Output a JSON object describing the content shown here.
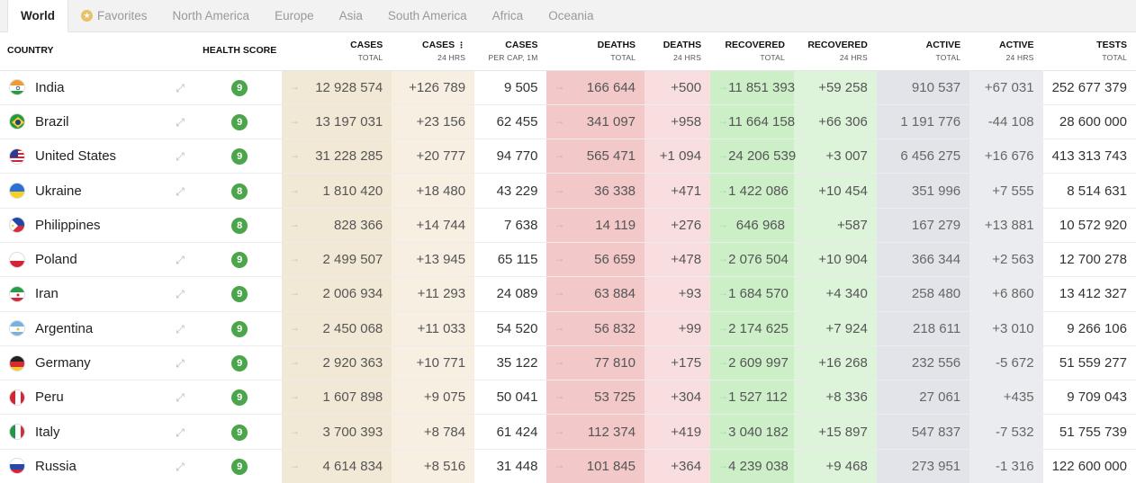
{
  "tabs": [
    {
      "label": "World",
      "active": true
    },
    {
      "label": "Favorites",
      "icon": "star-icon"
    },
    {
      "label": "North America"
    },
    {
      "label": "Europe"
    },
    {
      "label": "Asia"
    },
    {
      "label": "South America"
    },
    {
      "label": "Africa"
    },
    {
      "label": "Oceania"
    }
  ],
  "headers": {
    "country": "COUNTRY",
    "health": "HEALTH SCORE",
    "cases": {
      "title": "CASES",
      "sub": "TOTAL"
    },
    "cases24": {
      "title": "CASES",
      "sub": "24 HRS"
    },
    "casespc": {
      "title": "CASES",
      "sub": "PER CAP, 1M"
    },
    "deaths": {
      "title": "DEATHS",
      "sub": "TOTAL"
    },
    "deaths24": {
      "title": "DEATHS",
      "sub": "24 HRS"
    },
    "rec": {
      "title": "RECOVERED",
      "sub": "TOTAL"
    },
    "rec24": {
      "title": "RECOVERED",
      "sub": "24 HRS"
    },
    "act": {
      "title": "ACTIVE",
      "sub": "TOTAL"
    },
    "act24": {
      "title": "ACTIVE",
      "sub": "24 HRS"
    },
    "tests": {
      "title": "TESTS",
      "sub": "TOTAL"
    }
  },
  "colors": {
    "cases": "#f2e8d6",
    "deaths": "#f3c8c8",
    "recovered": "#ccefc8",
    "active": "#e2e4ea",
    "health_badge": "#4ba54a"
  },
  "rows": [
    {
      "name": "India",
      "flag": "india-flag-icon",
      "health": "9",
      "cases": "12 928 574",
      "cases24": "+126 789",
      "casespc": "9 505",
      "deaths": "166 644",
      "deaths24": "+500",
      "rec": "11 851 393",
      "rec24": "+59 258",
      "act": "910 537",
      "act24": "+67 031",
      "tests": "252 677 379"
    },
    {
      "name": "Brazil",
      "flag": "brazil-flag-icon",
      "health": "9",
      "cases": "13 197 031",
      "cases24": "+23 156",
      "casespc": "62 455",
      "deaths": "341 097",
      "deaths24": "+958",
      "rec": "11 664 158",
      "rec24": "+66 306",
      "act": "1 191 776",
      "act24": "-44 108",
      "tests": "28 600 000"
    },
    {
      "name": "United States",
      "flag": "usa-flag-icon",
      "health": "9",
      "cases": "31 228 285",
      "cases24": "+20 777",
      "casespc": "94 770",
      "deaths": "565 471",
      "deaths24": "+1 094",
      "rec": "24 206 539",
      "rec24": "+3 007",
      "act": "6 456 275",
      "act24": "+16 676",
      "tests": "413 313 743"
    },
    {
      "name": "Ukraine",
      "flag": "ukraine-flag-icon",
      "health": "8",
      "cases": "1 810 420",
      "cases24": "+18 480",
      "casespc": "43 229",
      "deaths": "36 338",
      "deaths24": "+471",
      "rec": "1 422 086",
      "rec24": "+10 454",
      "act": "351 996",
      "act24": "+7 555",
      "tests": "8 514 631"
    },
    {
      "name": "Philippines",
      "flag": "philippines-flag-icon",
      "health": "8",
      "cases": "828 366",
      "cases24": "+14 744",
      "casespc": "7 638",
      "deaths": "14 119",
      "deaths24": "+276",
      "rec": "646 968",
      "rec24": "+587",
      "act": "167 279",
      "act24": "+13 881",
      "tests": "10 572 920"
    },
    {
      "name": "Poland",
      "flag": "poland-flag-icon",
      "health": "9",
      "cases": "2 499 507",
      "cases24": "+13 945",
      "casespc": "65 115",
      "deaths": "56 659",
      "deaths24": "+478",
      "rec": "2 076 504",
      "rec24": "+10 904",
      "act": "366 344",
      "act24": "+2 563",
      "tests": "12 700 278"
    },
    {
      "name": "Iran",
      "flag": "iran-flag-icon",
      "health": "9",
      "cases": "2 006 934",
      "cases24": "+11 293",
      "casespc": "24 089",
      "deaths": "63 884",
      "deaths24": "+93",
      "rec": "1 684 570",
      "rec24": "+4 340",
      "act": "258 480",
      "act24": "+6 860",
      "tests": "13 412 327"
    },
    {
      "name": "Argentina",
      "flag": "argentina-flag-icon",
      "health": "9",
      "cases": "2 450 068",
      "cases24": "+11 033",
      "casespc": "54 520",
      "deaths": "56 832",
      "deaths24": "+99",
      "rec": "2 174 625",
      "rec24": "+7 924",
      "act": "218 611",
      "act24": "+3 010",
      "tests": "9 266 106"
    },
    {
      "name": "Germany",
      "flag": "germany-flag-icon",
      "health": "9",
      "cases": "2 920 363",
      "cases24": "+10 771",
      "casespc": "35 122",
      "deaths": "77 810",
      "deaths24": "+175",
      "rec": "2 609 997",
      "rec24": "+16 268",
      "act": "232 556",
      "act24": "-5 672",
      "tests": "51 559 277"
    },
    {
      "name": "Peru",
      "flag": "peru-flag-icon",
      "health": "9",
      "cases": "1 607 898",
      "cases24": "+9 075",
      "casespc": "50 041",
      "deaths": "53 725",
      "deaths24": "+304",
      "rec": "1 527 112",
      "rec24": "+8 336",
      "act": "27 061",
      "act24": "+435",
      "tests": "9 709 043"
    },
    {
      "name": "Italy",
      "flag": "italy-flag-icon",
      "health": "9",
      "cases": "3 700 393",
      "cases24": "+8 784",
      "casespc": "61 424",
      "deaths": "112 374",
      "deaths24": "+419",
      "rec": "3 040 182",
      "rec24": "+15 897",
      "act": "547 837",
      "act24": "-7 532",
      "tests": "51 755 739"
    },
    {
      "name": "Russia",
      "flag": "russia-flag-icon",
      "health": "9",
      "cases": "4 614 834",
      "cases24": "+8 516",
      "casespc": "31 448",
      "deaths": "101 845",
      "deaths24": "+364",
      "rec": "4 239 038",
      "rec24": "+9 468",
      "act": "273 951",
      "act24": "-1 316",
      "tests": "122 600 000"
    }
  ]
}
